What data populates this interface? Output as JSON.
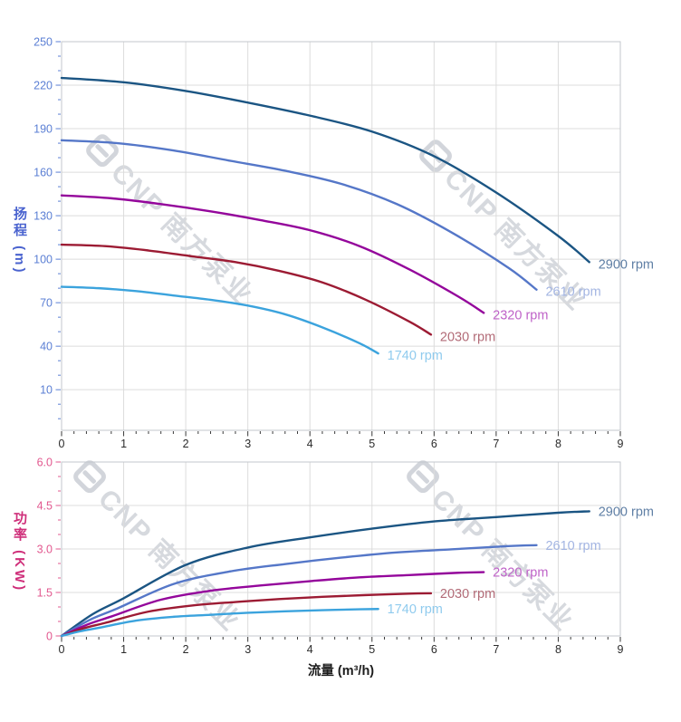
{
  "watermark": {
    "text": "CNP 南方泵业",
    "color": "#adb3be"
  },
  "style": {
    "background": "#ffffff",
    "grid_color": "#dcdcdc",
    "border_color": "#c3c7cd",
    "head_axis_color": "#5b7fd4",
    "head_title_color": "#4a63cf",
    "power_axis_color": "#e2588f",
    "power_title_color": "#cf2f7a",
    "x_tick_color": "#3a3a3a"
  },
  "chart_data": [
    {
      "type": "line",
      "name": "head-vs-flow-chart",
      "title": "",
      "xlabel": "",
      "ylabel": "扬程 (m)",
      "xlim": [
        0,
        9
      ],
      "ylim": [
        -18,
        250
      ],
      "grid": true,
      "legend_position": "curve-end-labels",
      "x_axis": {
        "min": 0,
        "max": 9,
        "major_ticks": [
          0,
          1,
          2,
          3,
          4,
          5,
          6,
          7,
          8,
          9
        ],
        "tick_labels": [
          "0",
          "1",
          "2",
          "3",
          "4",
          "5",
          "6",
          "7",
          "8",
          "9"
        ],
        "minor_step": 0.2,
        "tick_color": "#3a3a3a",
        "label_color": "#2b2b2b"
      },
      "y_axis": {
        "min": -18,
        "max": 250,
        "major_ticks": [
          10,
          40,
          70,
          100,
          130,
          160,
          190,
          220,
          250
        ],
        "tick_labels": [
          "10",
          "40",
          "70",
          "100",
          "130",
          "160",
          "190",
          "220",
          "250"
        ],
        "minor_step": 10,
        "tick_color": "#5b7fd4",
        "label_color": "#5b7fd4"
      },
      "series": [
        {
          "name": "2900 rpm",
          "color": "#1b5583",
          "label_color": "#5f7fa5",
          "points": [
            [
              0,
              225
            ],
            [
              1,
              222
            ],
            [
              2,
              216
            ],
            [
              3,
              208
            ],
            [
              4,
              199
            ],
            [
              5,
              188
            ],
            [
              6,
              171
            ],
            [
              7,
              146
            ],
            [
              8,
              116
            ],
            [
              8.5,
              98
            ]
          ]
        },
        {
          "name": "2610 rpm",
          "color": "#5577c8",
          "label_color": "#a3b5e2",
          "points": [
            [
              0,
              182
            ],
            [
              0.9,
              180
            ],
            [
              1.8,
              175
            ],
            [
              2.7,
              168
            ],
            [
              3.6,
              161
            ],
            [
              4.5,
              152
            ],
            [
              5.4,
              138
            ],
            [
              6.3,
              118
            ],
            [
              7.2,
              94
            ],
            [
              7.65,
              79
            ]
          ]
        },
        {
          "name": "2320 rpm",
          "color": "#94069b",
          "label_color": "#bf63c8",
          "points": [
            [
              0,
              144
            ],
            [
              0.8,
              142
            ],
            [
              1.6,
              138
            ],
            [
              2.4,
              133
            ],
            [
              3.2,
              127
            ],
            [
              4,
              120
            ],
            [
              4.8,
              109
            ],
            [
              5.6,
              93
            ],
            [
              6.4,
              74
            ],
            [
              6.8,
              63
            ]
          ]
        },
        {
          "name": "2030 rpm",
          "color": "#9c1b33",
          "label_color": "#b26b77",
          "points": [
            [
              0,
              110
            ],
            [
              0.7,
              109
            ],
            [
              1.4,
              106
            ],
            [
              2.1,
              102
            ],
            [
              2.8,
              98
            ],
            [
              3.5,
              92
            ],
            [
              4.2,
              84
            ],
            [
              4.9,
              72
            ],
            [
              5.6,
              57
            ],
            [
              5.95,
              48
            ]
          ]
        },
        {
          "name": "1740 rpm",
          "color": "#3ba3dd",
          "label_color": "#90cbee",
          "points": [
            [
              0,
              81
            ],
            [
              0.6,
              80
            ],
            [
              1.2,
              78
            ],
            [
              1.8,
              75
            ],
            [
              2.4,
              72
            ],
            [
              3,
              68
            ],
            [
              3.6,
              62
            ],
            [
              4.2,
              53
            ],
            [
              4.8,
              42
            ],
            [
              5.1,
              35
            ]
          ]
        }
      ]
    },
    {
      "type": "line",
      "name": "power-vs-flow-chart",
      "title": "",
      "xlabel": "流量 (m³/h)",
      "ylabel": "功率 (KW)",
      "xlim": [
        0,
        9
      ],
      "ylim": [
        0,
        6
      ],
      "grid": true,
      "legend_position": "curve-end-labels",
      "x_axis": {
        "min": 0,
        "max": 9,
        "major_ticks": [
          0,
          1,
          2,
          3,
          4,
          5,
          6,
          7,
          8,
          9
        ],
        "tick_labels": [
          "0",
          "1",
          "2",
          "3",
          "4",
          "5",
          "6",
          "7",
          "8",
          "9"
        ],
        "minor_step": 0.2,
        "tick_color": "#3a3a3a",
        "label_color": "#2b2b2b"
      },
      "y_axis": {
        "min": 0,
        "max": 6,
        "major_ticks": [
          0,
          1.5,
          3,
          4.5,
          6
        ],
        "tick_labels": [
          "0",
          "1.5",
          "3.0",
          "4.5",
          "6.0"
        ],
        "minor_step": 0.5,
        "tick_color": "#e2588f",
        "label_color": "#e2588f"
      },
      "series": [
        {
          "name": "2900 rpm",
          "color": "#1b5583",
          "label_color": "#5f7fa5",
          "points": [
            [
              0,
              0
            ],
            [
              0.5,
              0.75
            ],
            [
              1,
              1.3
            ],
            [
              2,
              2.45
            ],
            [
              3,
              3.05
            ],
            [
              4,
              3.4
            ],
            [
              5,
              3.7
            ],
            [
              6,
              3.95
            ],
            [
              7,
              4.1
            ],
            [
              8,
              4.25
            ],
            [
              8.5,
              4.3
            ]
          ]
        },
        {
          "name": "2610 rpm",
          "color": "#5577c8",
          "label_color": "#a3b5e2",
          "points": [
            [
              0,
              0
            ],
            [
              0.45,
              0.55
            ],
            [
              0.9,
              0.95
            ],
            [
              1.8,
              1.79
            ],
            [
              2.7,
              2.22
            ],
            [
              3.6,
              2.48
            ],
            [
              4.5,
              2.7
            ],
            [
              5.4,
              2.88
            ],
            [
              6.3,
              2.99
            ],
            [
              7.2,
              3.1
            ],
            [
              7.65,
              3.13
            ]
          ]
        },
        {
          "name": "2320 rpm",
          "color": "#94069b",
          "label_color": "#bf63c8",
          "points": [
            [
              0,
              0
            ],
            [
              0.4,
              0.38
            ],
            [
              0.8,
              0.67
            ],
            [
              1.6,
              1.25
            ],
            [
              2.4,
              1.56
            ],
            [
              3.2,
              1.74
            ],
            [
              4,
              1.89
            ],
            [
              4.8,
              2.02
            ],
            [
              5.6,
              2.1
            ],
            [
              6.4,
              2.18
            ],
            [
              6.8,
              2.2
            ]
          ]
        },
        {
          "name": "2030 rpm",
          "color": "#9c1b33",
          "label_color": "#b26b77",
          "points": [
            [
              0,
              0
            ],
            [
              0.35,
              0.26
            ],
            [
              0.7,
              0.45
            ],
            [
              1.4,
              0.84
            ],
            [
              2.1,
              1.05
            ],
            [
              2.8,
              1.17
            ],
            [
              3.5,
              1.27
            ],
            [
              4.2,
              1.35
            ],
            [
              4.9,
              1.41
            ],
            [
              5.6,
              1.46
            ],
            [
              5.95,
              1.47
            ]
          ]
        },
        {
          "name": "1740 rpm",
          "color": "#3ba3dd",
          "label_color": "#90cbee",
          "points": [
            [
              0,
              0
            ],
            [
              0.3,
              0.16
            ],
            [
              0.6,
              0.28
            ],
            [
              1.2,
              0.53
            ],
            [
              1.8,
              0.66
            ],
            [
              2.4,
              0.73
            ],
            [
              3,
              0.8
            ],
            [
              3.6,
              0.85
            ],
            [
              4.2,
              0.89
            ],
            [
              4.8,
              0.92
            ],
            [
              5.1,
              0.93
            ]
          ]
        }
      ]
    }
  ]
}
